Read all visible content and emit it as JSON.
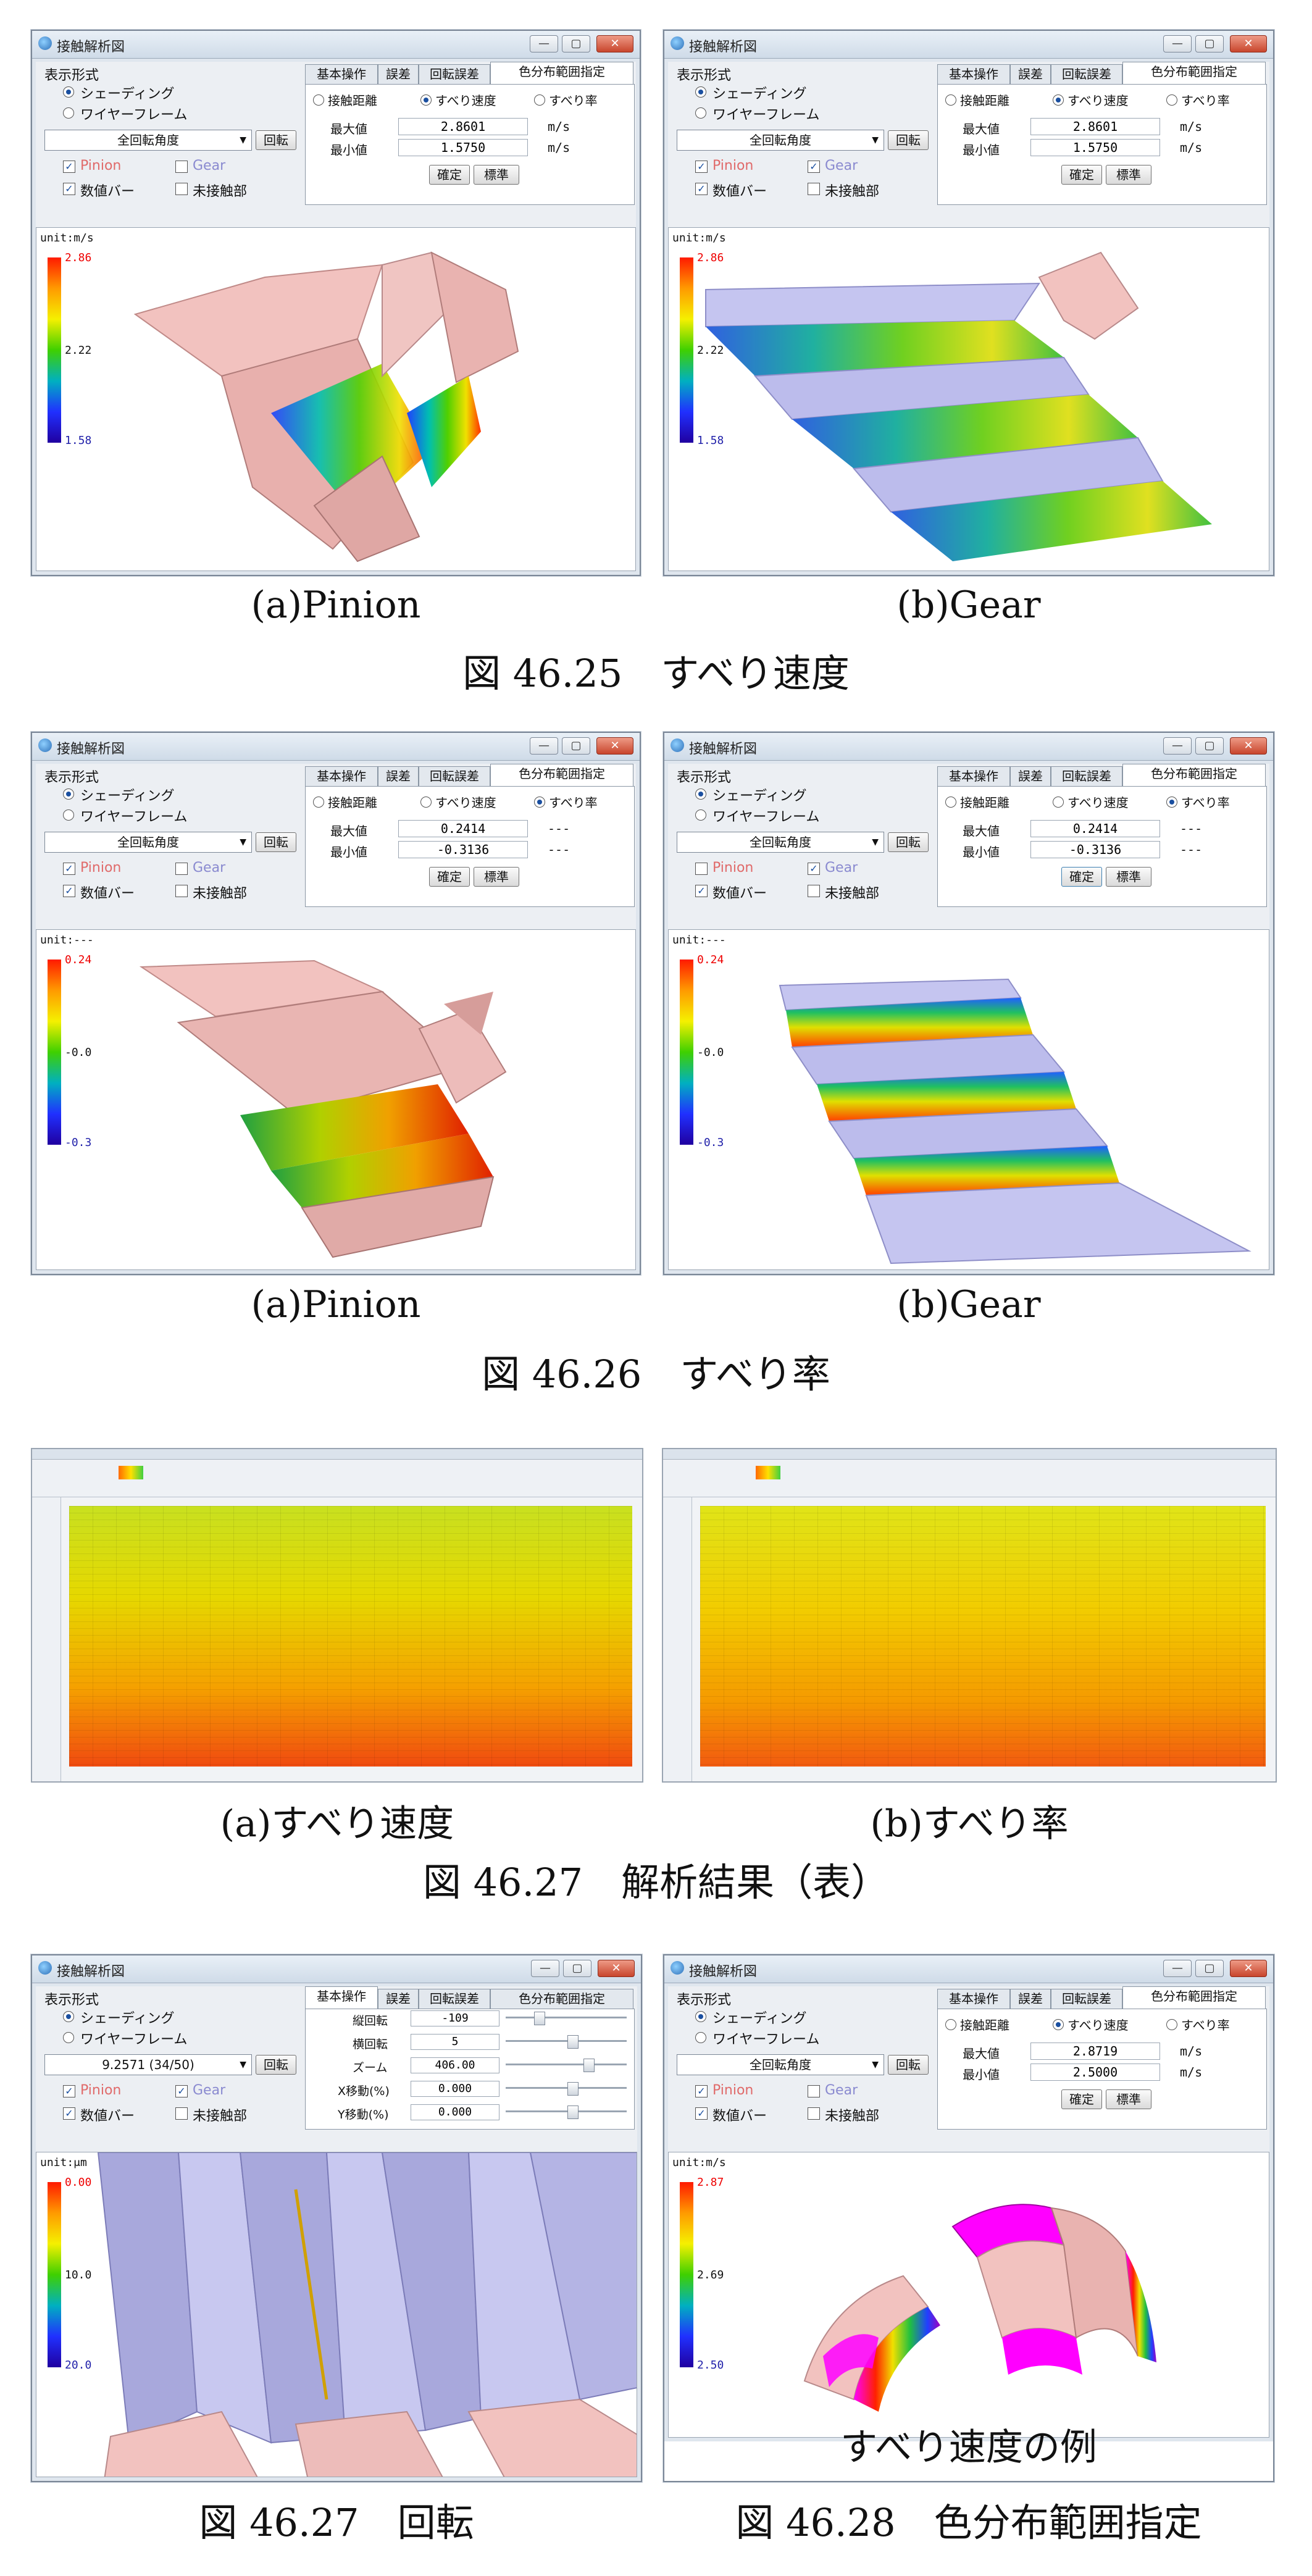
{
  "window_title": "接触解析図",
  "display_mode_label": "表示形式",
  "radio_shading": "シェーディング",
  "radio_wireframe": "ワイヤーフレーム",
  "dropdown_all_rotation": "全回転角度",
  "dropdown_step": "9.2571 (34/50)",
  "rotate_button": "回転",
  "check_pinion": "Pinion",
  "check_gear": "Gear",
  "check_value_bar": "数値バー",
  "check_non_contact": "未接触部",
  "tabs": [
    "基本操作",
    "誤差",
    "回転誤差",
    "色分布範囲指定"
  ],
  "opt_contact_distance": "接触距離",
  "opt_slip_speed": "すべり速度",
  "opt_slip_rate": "すべり率",
  "max_label": "最大値",
  "min_label": "最小値",
  "confirm_button": "確定",
  "standard_button": "標準",
  "colors": {
    "pinion": "#f2c2bf",
    "gear": "#b8b8ec",
    "magenta": "#ff00ff"
  },
  "fig25": {
    "max_value": "2.8601",
    "min_value": "1.5750",
    "unit": "m/s",
    "legend_unit": "unit:m/s",
    "ticks": [
      "2.86",
      "2.22",
      "1.58"
    ],
    "cap_a": "(a)Pinion",
    "cap_b": "(b)Gear",
    "title": "図 46.25　すべり速度"
  },
  "fig26": {
    "max_value": "0.2414",
    "min_value": "-0.3136",
    "unit": "---",
    "legend_unit": "unit:---",
    "ticks": [
      "0.24",
      "-0.0",
      "-0.3"
    ],
    "cap_a": "(a)Pinion",
    "cap_b": "(b)Gear",
    "title": "図 46.26　すべり率"
  },
  "fig27a": {
    "cap_a": "(a)すべり速度",
    "cap_b": "(b)すべり率",
    "title": "図 46.27　解析結果（表）"
  },
  "fig27b": {
    "rows": [
      {
        "label": "縦回転",
        "value": "-109"
      },
      {
        "label": "横回転",
        "value": "5"
      },
      {
        "label": "ズーム",
        "value": "406.00"
      },
      {
        "label": "X移動(%)",
        "value": "0.000"
      },
      {
        "label": "Y移動(%)",
        "value": "0.000"
      }
    ],
    "legend_unit": "unit:μm",
    "ticks": [
      "0.00",
      "10.0",
      "20.0"
    ],
    "title": "図 46.27　回転"
  },
  "fig28": {
    "max_value": "2.8719",
    "min_value": "2.5000",
    "unit": "m/s",
    "legend_unit": "unit:m/s",
    "ticks": [
      "2.87",
      "2.69",
      "2.50"
    ],
    "sub": "すべり速度の例",
    "title": "図 46.28　色分布範囲指定"
  }
}
